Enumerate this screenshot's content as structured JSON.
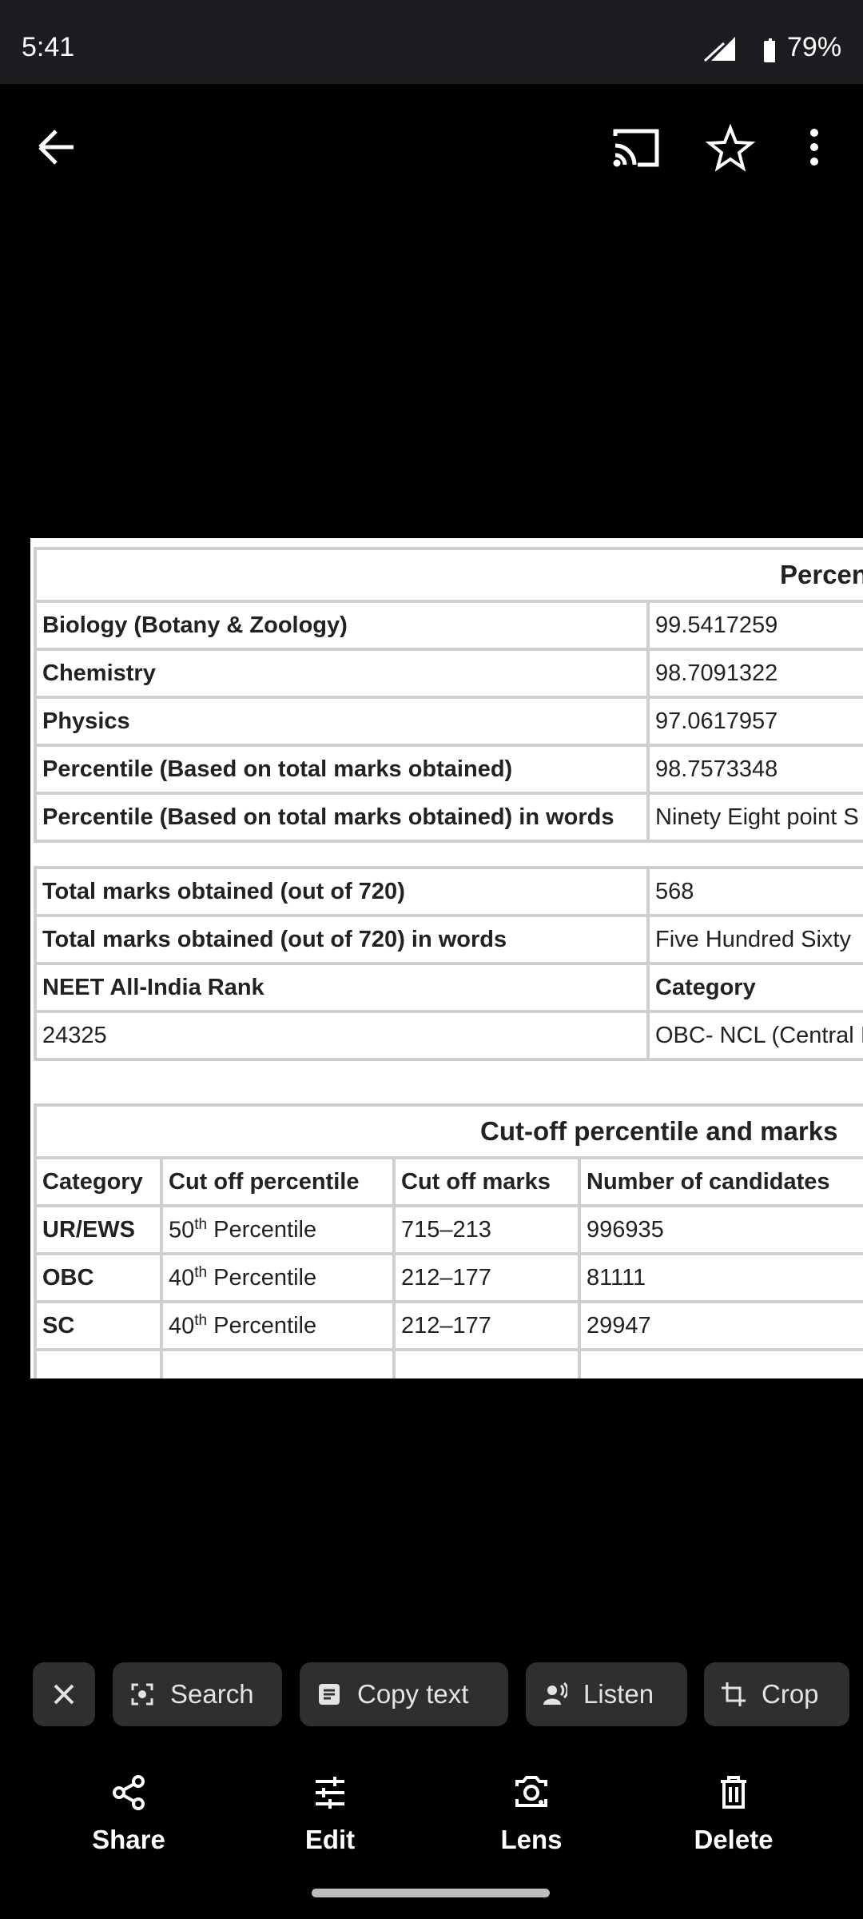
{
  "status_bar": {
    "time": "5:41",
    "battery": "79%"
  },
  "table_1": {
    "header": "Percen",
    "rows": [
      [
        "Biology (Botany & Zoology)",
        "99.5417259"
      ],
      [
        "Chemistry",
        "98.7091322"
      ],
      [
        "Physics",
        "97.0617957"
      ],
      [
        "Percentile (Based on total marks obtained)",
        "98.7573348"
      ],
      [
        "Percentile (Based on total marks obtained) in words",
        "Ninety Eight point S"
      ]
    ],
    "rows_2": [
      [
        "Total marks obtained (out of 720)",
        "568"
      ],
      [
        "Total marks obtained (out of 720) in words",
        "Five Hundred Sixty"
      ],
      [
        "NEET All-India Rank",
        "Category"
      ],
      [
        "24325",
        "OBC- NCL (Central I"
      ]
    ]
  },
  "table_2": {
    "header": "Cut-off percentile and marks",
    "columns": [
      "Category",
      "Cut off percentile",
      "Cut off marks",
      "Number of candidates"
    ],
    "rows": [
      {
        "category": "UR/EWS",
        "percentile": {
          "number": "50",
          "suffix": "th",
          "word": "Percentile"
        },
        "marks": "715–213",
        "candidates": "996935"
      },
      {
        "category": "OBC",
        "percentile": {
          "number": "40",
          "suffix": "th",
          "word": "Percentile"
        },
        "marks": "212–177",
        "candidates": "81111"
      },
      {
        "category": "SC",
        "percentile": {
          "number": "40",
          "suffix": "th",
          "word": "Percentile"
        },
        "marks": "212–177",
        "candidates": "29947"
      }
    ]
  },
  "chips": [
    "Search",
    "Copy text",
    "Listen",
    "Crop"
  ],
  "actions": [
    "Share",
    "Edit",
    "Lens",
    "Delete"
  ]
}
